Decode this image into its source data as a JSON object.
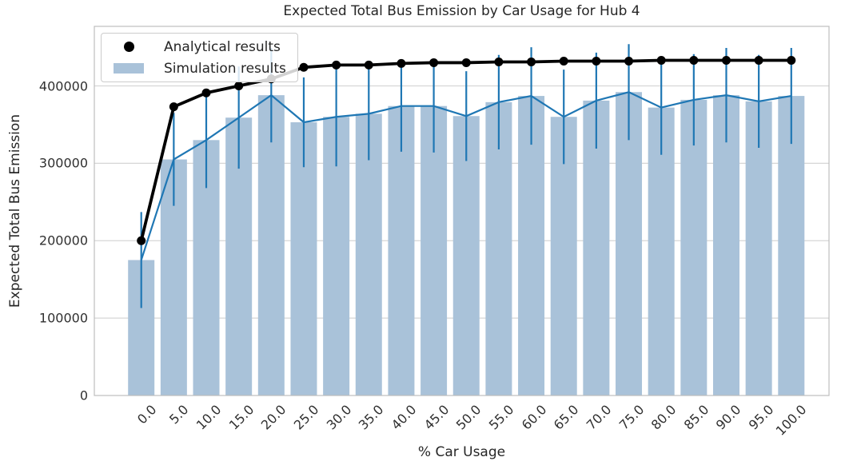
{
  "title": "Expected Total Bus Emission by Car Usage for Hub 4",
  "axes": {
    "xlabel": "% Car Usage",
    "ylabel": "Expected Total Bus Emission"
  },
  "legend": {
    "position": "upper left",
    "items": [
      {
        "label": "Analytical results",
        "marker": "dot"
      },
      {
        "label": "Simulation results",
        "marker": "patch"
      }
    ]
  },
  "colors": {
    "analytical_line": "#000000",
    "simulation_bar": "#a9c2d9",
    "error_line": "#1f77b4",
    "simulation_mean_line": "#1f77b4",
    "grid": "#d6d6d6",
    "spine": "#bdbdbd",
    "text": "#262626",
    "background": "#ffffff"
  },
  "chart_data": {
    "type": "bar",
    "title": "Expected Total Bus Emission by Car Usage for Hub 4",
    "xlabel": "% Car Usage",
    "ylabel": "Expected Total Bus Emission",
    "grid": true,
    "legend_position": "upper left",
    "categories": [
      "0.0",
      "5.0",
      "10.0",
      "15.0",
      "20.0",
      "25.0",
      "30.0",
      "35.0",
      "40.0",
      "45.0",
      "50.0",
      "55.0",
      "60.0",
      "65.0",
      "70.0",
      "75.0",
      "80.0",
      "85.0",
      "90.0",
      "95.0",
      "100.0"
    ],
    "ylim": [
      0,
      477000
    ],
    "yticks": [
      0,
      100000,
      200000,
      300000,
      400000
    ],
    "ytick_labels": [
      "0",
      "100000",
      "200000",
      "300000",
      "400000"
    ],
    "series": [
      {
        "name": "Analytical results",
        "type": "line",
        "marker": "circle",
        "color": "#000000",
        "values": [
          200000,
          373000,
          391000,
          400000,
          409000,
          424000,
          427000,
          427000,
          429000,
          430000,
          430000,
          431000,
          431000,
          432000,
          432000,
          432000,
          433000,
          433000,
          433000,
          433000,
          433000
        ]
      },
      {
        "name": "Simulation results",
        "type": "bar",
        "color": "#a9c2d9",
        "error_color": "#1f77b4",
        "values": [
          175000,
          305000,
          330000,
          359000,
          388000,
          353000,
          360000,
          364000,
          374000,
          374000,
          361000,
          379000,
          387000,
          360000,
          381000,
          392000,
          372000,
          382000,
          388000,
          380000,
          387000
        ],
        "errors": [
          62000,
          60000,
          62000,
          66000,
          61000,
          58000,
          64000,
          60000,
          59000,
          60000,
          58000,
          61000,
          63000,
          61000,
          62000,
          62000,
          61000,
          59000,
          61000,
          60000,
          62000
        ]
      }
    ]
  }
}
